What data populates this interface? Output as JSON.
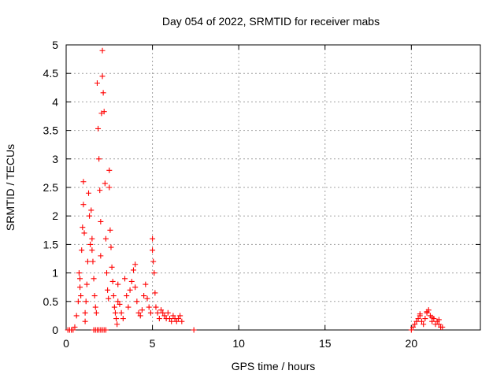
{
  "chart_data": {
    "type": "scatter",
    "title": "Day 054 of 2022, SRMTID for receiver mabs",
    "xlabel": "GPS time / hours",
    "ylabel": "SRMTID / TECUs",
    "xlim": [
      0,
      24
    ],
    "ylim": [
      0,
      5
    ],
    "xticks": [
      0,
      5,
      10,
      15,
      20
    ],
    "yticks": [
      0,
      0.5,
      1,
      1.5,
      2,
      2.5,
      3,
      3.5,
      4,
      4.5,
      5
    ],
    "grid": true,
    "marker": "plus",
    "color": "#ff0000",
    "series": [
      {
        "x": [
          0.1,
          0.2,
          0.3,
          0.4,
          0.5,
          0.6,
          0.7,
          0.8,
          0.75,
          0.8,
          0.85,
          0.9,
          0.95,
          1.0,
          1.0,
          1.05,
          1.1,
          1.1,
          1.15,
          1.2,
          1.25,
          1.3,
          1.35,
          1.4,
          1.45,
          1.5,
          1.5,
          1.55,
          1.6,
          1.65,
          1.7,
          1.75,
          1.8,
          1.85,
          1.9,
          1.95,
          2.0,
          2.0,
          2.05,
          2.1,
          2.1,
          2.15,
          2.2,
          2.25,
          2.3,
          2.35,
          2.4,
          2.45,
          2.5,
          2.5,
          2.55,
          2.6,
          2.65,
          2.7,
          2.75,
          2.8,
          2.85,
          2.9,
          2.95,
          3.0,
          3.0,
          3.1,
          3.2,
          3.3,
          3.4,
          3.5,
          3.6,
          3.7,
          3.8,
          3.9,
          4.0,
          4.0,
          4.1,
          4.2,
          4.3,
          4.4,
          4.5,
          4.6,
          4.7,
          4.8,
          4.9,
          5.0,
          5.0,
          5.05,
          5.1,
          5.15,
          5.2,
          5.3,
          5.4,
          5.5,
          5.6,
          5.7,
          5.8,
          5.9,
          6.0,
          6.1,
          6.2,
          6.3,
          6.4,
          6.5,
          6.6,
          6.7,
          7.4,
          1.6,
          1.7,
          1.8,
          1.9,
          2.0,
          2.1,
          2.2,
          2.3,
          20.0,
          20.1,
          20.2,
          20.3,
          20.4,
          20.5,
          20.6,
          20.7,
          20.8,
          20.9,
          21.0,
          21.1,
          21.2,
          21.3,
          21.4,
          21.5,
          21.6,
          21.7,
          21.8,
          20.5,
          20.9,
          21.2,
          21.6
        ],
        "y": [
          0,
          0,
          0,
          0,
          0.05,
          0.25,
          0.5,
          0.75,
          1.0,
          0.9,
          0.6,
          1.4,
          1.8,
          2.2,
          2.6,
          1.7,
          0.3,
          0.15,
          0.5,
          0.8,
          1.2,
          2.4,
          2.0,
          1.5,
          2.1,
          1.6,
          1.4,
          1.2,
          0.9,
          0.6,
          0.4,
          0.3,
          4.33,
          3.53,
          3.0,
          2.45,
          1.9,
          1.3,
          3.8,
          4.9,
          4.45,
          4.16,
          3.83,
          2.57,
          1.6,
          1.0,
          0.7,
          0.55,
          2.5,
          2.8,
          1.75,
          1.45,
          1.1,
          0.85,
          0.6,
          0.4,
          0.3,
          0.2,
          0.1,
          0.5,
          0.8,
          0.45,
          0.3,
          0.2,
          0.9,
          0.6,
          0.4,
          0.7,
          0.85,
          1.05,
          1.15,
          0.75,
          0.5,
          0.3,
          0.25,
          0.35,
          0.6,
          0.8,
          0.55,
          0.4,
          0.3,
          1.6,
          1.4,
          1.2,
          1.0,
          0.65,
          0.4,
          0.3,
          0.2,
          0.35,
          0.3,
          0.25,
          0.2,
          0.3,
          0.2,
          0.15,
          0.25,
          0.2,
          0.15,
          0.2,
          0.25,
          0.15,
          0,
          0,
          0,
          0,
          0,
          0,
          0,
          0,
          0,
          0,
          0.05,
          0.1,
          0.15,
          0.2,
          0.25,
          0.15,
          0.1,
          0.2,
          0.3,
          0.35,
          0.25,
          0.15,
          0.2,
          0.1,
          0.15,
          0.1,
          0.05,
          0.05,
          0.28,
          0.32,
          0.22,
          0.18
        ]
      }
    ]
  }
}
